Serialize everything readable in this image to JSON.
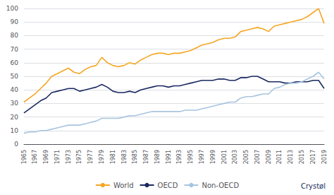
{
  "chart_data": {
    "type": "line",
    "x": [
      1965,
      1966,
      1967,
      1968,
      1969,
      1970,
      1971,
      1972,
      1973,
      1974,
      1975,
      1976,
      1977,
      1978,
      1979,
      1980,
      1981,
      1982,
      1983,
      1984,
      1985,
      1986,
      1987,
      1988,
      1989,
      1990,
      1991,
      1992,
      1993,
      1994,
      1995,
      1996,
      1997,
      1998,
      1999,
      2000,
      2001,
      2002,
      2003,
      2004,
      2005,
      2006,
      2007,
      2008,
      2009,
      2010,
      2011,
      2012,
      2013,
      2014,
      2015,
      2016,
      2017,
      2018,
      2019
    ],
    "series": [
      {
        "name": "World",
        "color": "#f5a623",
        "values": [
          31,
          34,
          37,
          41,
          45,
          50,
          52,
          54,
          56,
          53,
          52,
          55,
          57,
          58,
          64,
          60,
          58,
          57,
          58,
          60,
          59,
          62,
          64,
          66,
          67,
          67,
          66,
          67,
          67,
          68,
          69,
          71,
          73,
          74,
          75,
          77,
          78,
          78,
          79,
          83,
          84,
          85,
          86,
          85,
          83,
          87,
          88,
          89,
          90,
          91,
          92,
          94,
          97,
          100,
          89
        ]
      },
      {
        "name": "OECD",
        "color": "#1a2960",
        "values": [
          23,
          26,
          29,
          32,
          34,
          38,
          39,
          40,
          41,
          41,
          39,
          40,
          41,
          42,
          44,
          42,
          39,
          38,
          38,
          39,
          38,
          40,
          41,
          42,
          43,
          43,
          42,
          43,
          43,
          44,
          45,
          46,
          47,
          47,
          47,
          48,
          48,
          47,
          47,
          49,
          49,
          50,
          50,
          48,
          46,
          46,
          46,
          45,
          45,
          46,
          46,
          46,
          47,
          47,
          41
        ]
      },
      {
        "name": "Non-OECD",
        "color": "#a8c4e0",
        "values": [
          8,
          9,
          9,
          10,
          10,
          11,
          12,
          13,
          14,
          14,
          14,
          15,
          16,
          17,
          19,
          19,
          19,
          19,
          20,
          21,
          21,
          22,
          23,
          24,
          24,
          24,
          24,
          24,
          24,
          25,
          25,
          25,
          26,
          27,
          28,
          29,
          30,
          31,
          31,
          34,
          35,
          35,
          36,
          37,
          37,
          41,
          42,
          44,
          45,
          45,
          46,
          48,
          50,
          53,
          48
        ]
      }
    ],
    "xlim": [
      1965,
      2019
    ],
    "xticks": [
      1965,
      1967,
      1969,
      1971,
      1973,
      1975,
      1977,
      1979,
      1981,
      1983,
      1985,
      1987,
      1989,
      1991,
      1993,
      1995,
      1997,
      1999,
      2001,
      2003,
      2005,
      2007,
      2009,
      2011,
      2013,
      2015,
      2017,
      2019
    ],
    "ylim": [
      0,
      100
    ],
    "yticks": [
      0,
      10,
      20,
      30,
      40,
      50,
      60,
      70,
      80,
      90,
      100
    ],
    "grid": true,
    "legend": "bottom",
    "annotations": [
      "Crystøl"
    ]
  }
}
